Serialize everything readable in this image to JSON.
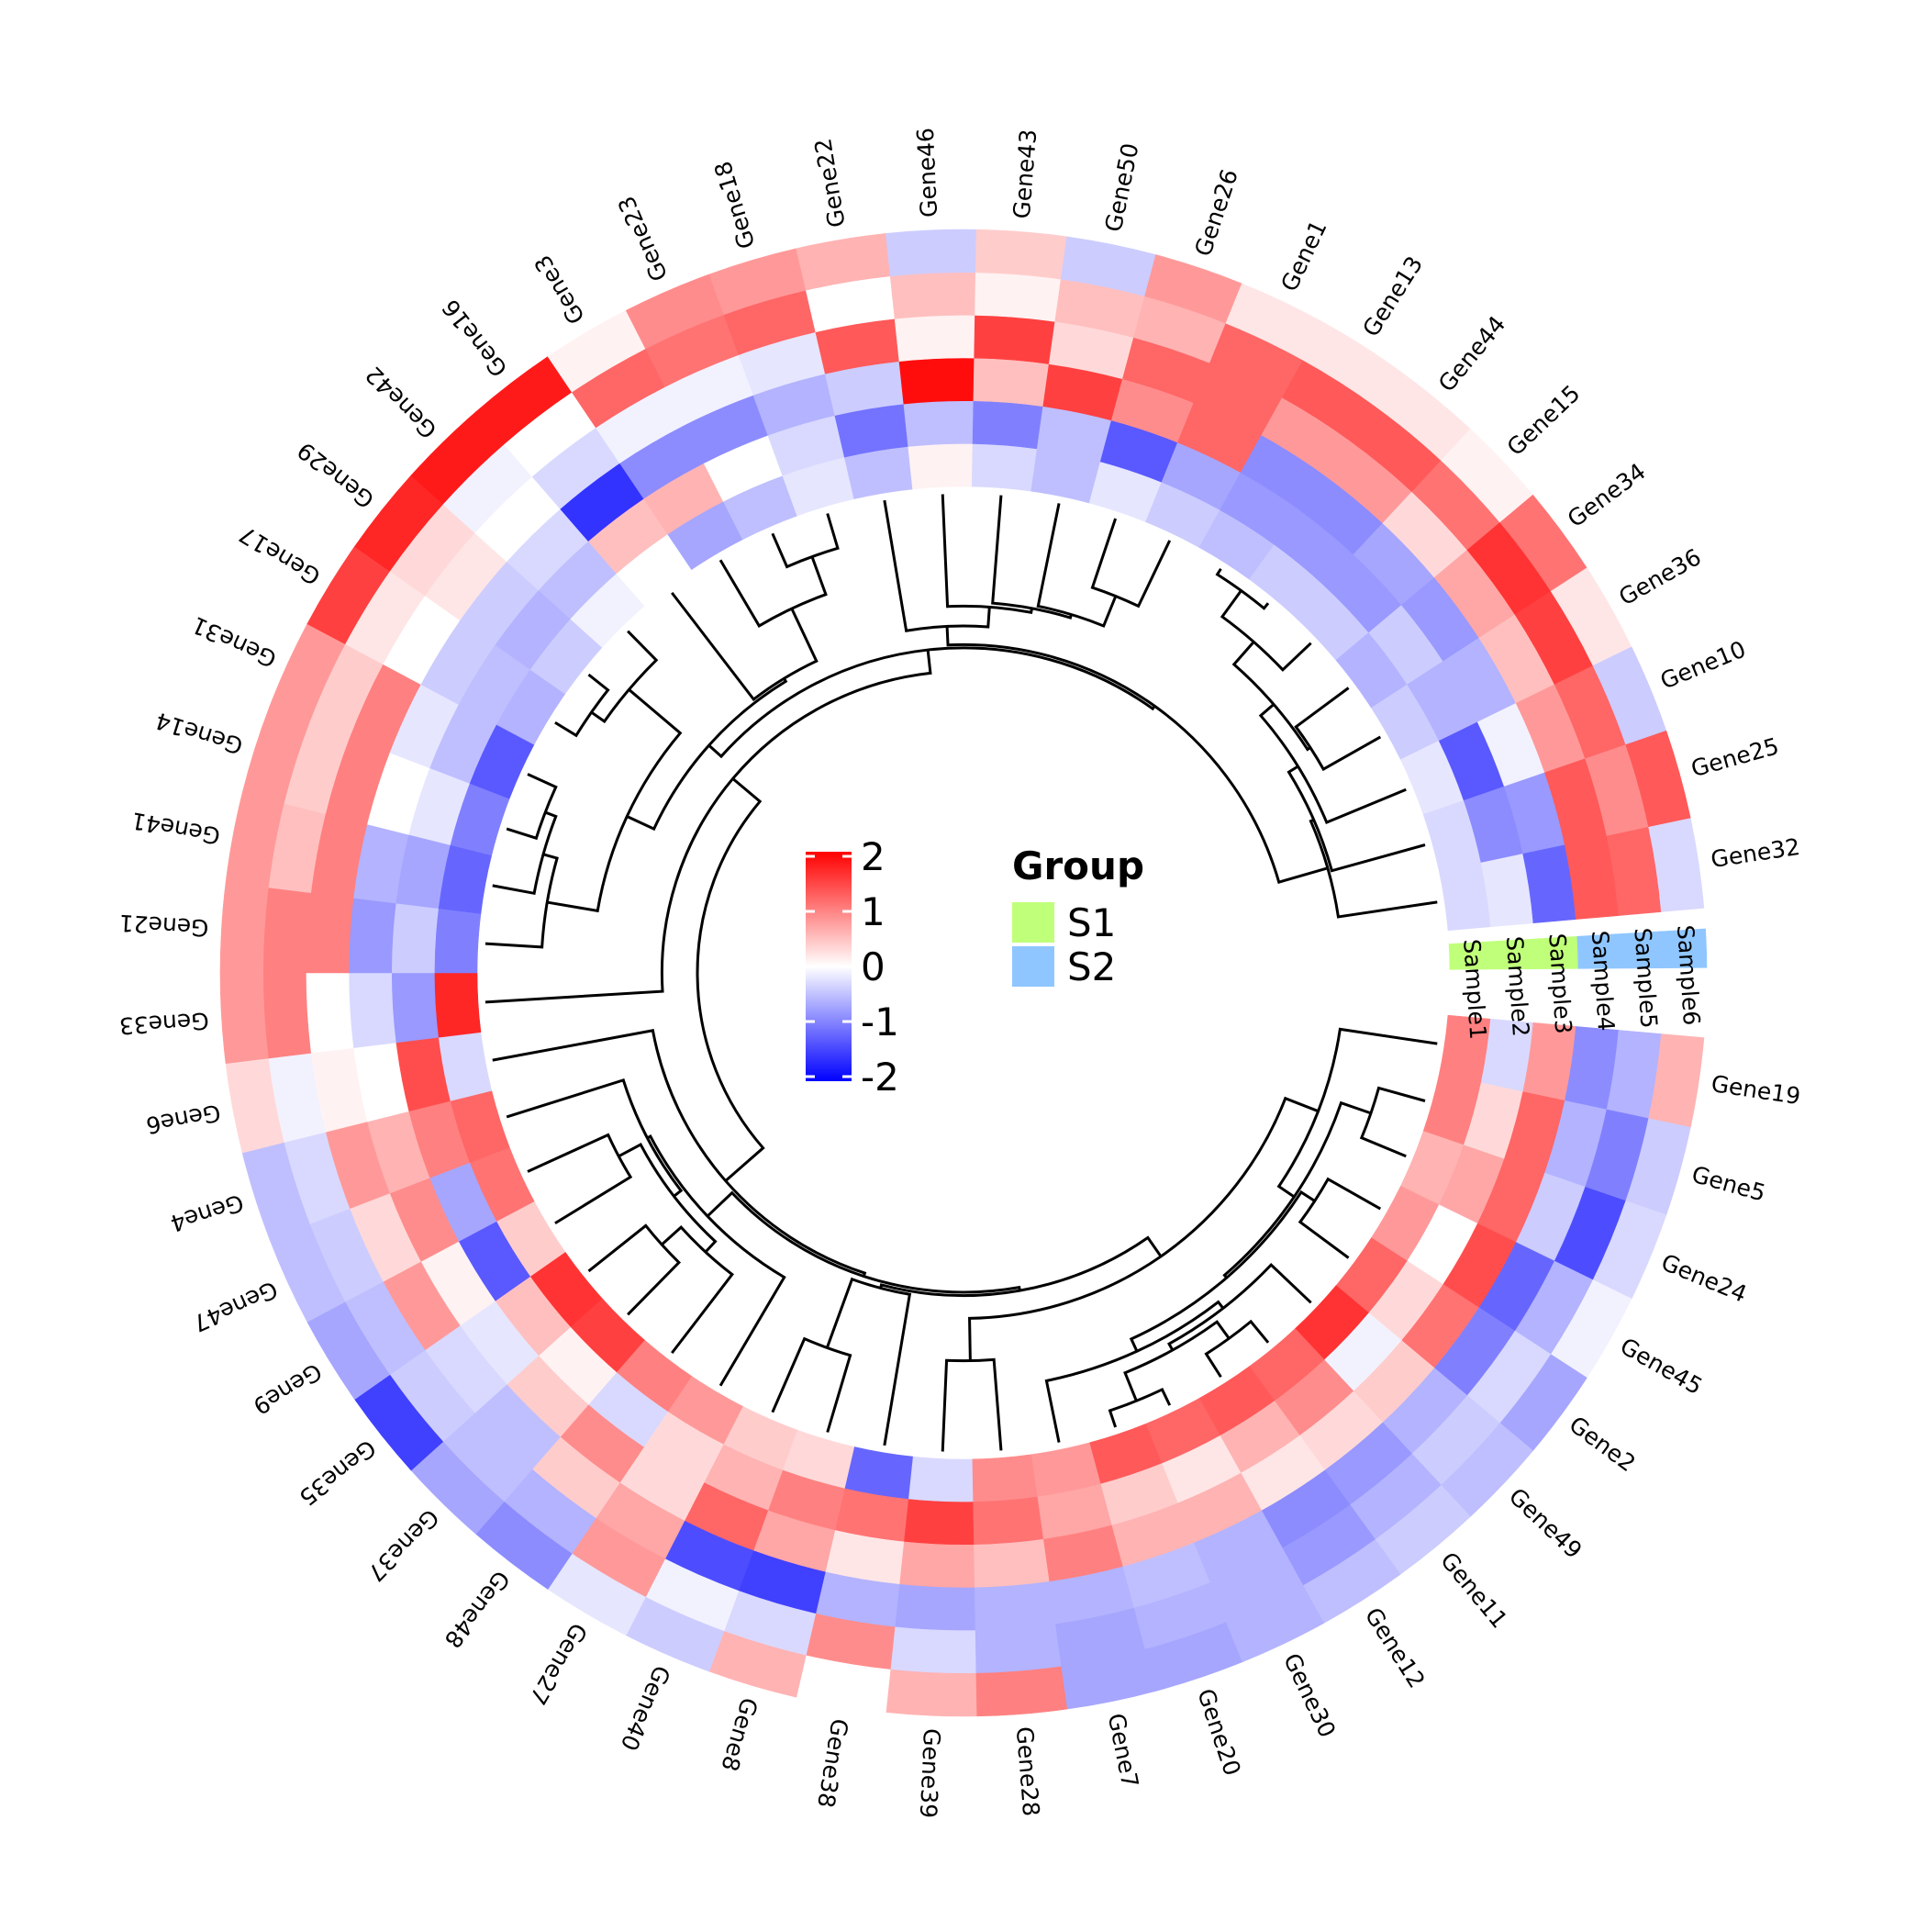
{
  "chart_data": {
    "type": "heatmap",
    "layout": "circular",
    "samples": [
      "Sample1",
      "Sample2",
      "Sample3",
      "Sample4",
      "Sample5",
      "Sample6"
    ],
    "sample_groups": [
      "S1",
      "S1",
      "S1",
      "S2",
      "S2",
      "S2"
    ],
    "genes": [
      "Gene19",
      "Gene5",
      "Gene24",
      "Gene45",
      "Gene2",
      "Gene49",
      "Gene11",
      "Gene12",
      "Gene30",
      "Gene20",
      "Gene7",
      "Gene28",
      "Gene39",
      "Gene38",
      "Gene8",
      "Gene40",
      "Gene27",
      "Gene48",
      "Gene37",
      "Gene35",
      "Gene9",
      "Gene47",
      "Gene4",
      "Gene6",
      "Gene33",
      "Gene21",
      "Gene41",
      "Gene14",
      "Gene31",
      "Gene17",
      "Gene29",
      "Gene42",
      "Gene16",
      "Gene3",
      "Gene23",
      "Gene18",
      "Gene22",
      "Gene46",
      "Gene43",
      "Gene50",
      "Gene26",
      "Gene1",
      "Gene13",
      "Gene44",
      "Gene15",
      "Gene34",
      "Gene36",
      "Gene10",
      "Gene25",
      "Gene32"
    ],
    "values": [
      [
        1.0,
        -0.3,
        0.8,
        -0.9,
        -0.6,
        0.6
      ],
      [
        1.0,
        0.3,
        1.2,
        -0.6,
        -1.0,
        -0.4
      ],
      [
        0.6,
        0.7,
        1.2,
        -0.4,
        -1.4,
        -0.3
      ],
      [
        0.8,
        0.0,
        1.4,
        -1.2,
        -0.6,
        -0.1
      ],
      [
        1.2,
        0.3,
        1.1,
        -1.0,
        -0.3,
        -0.7
      ],
      [
        1.6,
        -0.1,
        0.4,
        -0.6,
        -0.4,
        -0.5
      ],
      [
        1.2,
        0.9,
        0.3,
        -0.8,
        -0.6,
        -0.4
      ],
      [
        1.3,
        0.6,
        0.2,
        -0.9,
        -0.8,
        -0.5
      ],
      [
        1.2,
        0.2,
        0.6,
        -0.6,
        -0.6,
        -0.6
      ],
      [
        1.3,
        0.4,
        0.6,
        -0.5,
        -0.6,
        -0.7
      ],
      [
        0.8,
        0.7,
        1.0,
        -0.6,
        -0.7,
        -0.7
      ],
      [
        0.9,
        1.1,
        0.5,
        -0.6,
        -0.6,
        1.0
      ],
      [
        -0.3,
        1.5,
        0.7,
        -0.7,
        -0.3,
        0.6
      ],
      [
        -1.2,
        1.1,
        0.2,
        -0.6,
        0.9,
        0.0
      ],
      [
        0.3,
        1.0,
        0.7,
        -1.5,
        -0.3,
        0.6
      ],
      [
        0.4,
        0.6,
        1.2,
        -1.4,
        -0.1,
        -0.4
      ],
      [
        0.8,
        0.3,
        0.3,
        0.7,
        0.8,
        -0.2
      ],
      [
        1.0,
        -0.3,
        0.9,
        0.4,
        -0.6,
        -0.9
      ],
      [
        1.5,
        0.1,
        0.4,
        -0.5,
        -0.5,
        -0.7
      ],
      [
        1.6,
        0.5,
        -0.2,
        -0.3,
        -0.4,
        -1.5
      ],
      [
        0.4,
        -1.3,
        0.1,
        0.8,
        -0.5,
        -0.7
      ],
      [
        1.1,
        -0.7,
        0.9,
        0.3,
        -0.4,
        -0.5
      ],
      [
        1.2,
        1.0,
        0.6,
        0.8,
        -0.3,
        -0.5
      ],
      [
        -0.3,
        1.4,
        0.0,
        0.1,
        -0.1,
        0.3
      ],
      [
        1.7,
        -0.8,
        -0.3,
        0.0,
        1.0,
        0.8
      ],
      [
        -1.0,
        -0.4,
        -0.8,
        1.0,
        1.0,
        0.8
      ],
      [
        -1.2,
        -0.7,
        -0.6,
        1.0,
        0.5,
        0.8
      ],
      [
        -1.0,
        -0.2,
        0.0,
        1.0,
        0.4,
        0.8
      ],
      [
        -1.3,
        -0.5,
        -0.2,
        1.0,
        0.4,
        0.8
      ],
      [
        -0.6,
        -0.5,
        -0.4,
        0.0,
        0.2,
        1.5
      ],
      [
        -0.4,
        -0.6,
        -0.4,
        0.2,
        0.3,
        1.7
      ],
      [
        -0.1,
        -0.5,
        -0.3,
        0.0,
        -0.1,
        1.8
      ],
      [
        0.0,
        0.5,
        -1.6,
        -0.3,
        0.0,
        1.8
      ],
      [
        -0.7,
        0.6,
        -0.9,
        -0.1,
        1.2,
        0.1
      ],
      [
        -0.5,
        0.0,
        -0.9,
        -0.1,
        1.1,
        0.9
      ],
      [
        -0.2,
        -0.3,
        -0.6,
        -0.2,
        1.2,
        0.8
      ],
      [
        -0.5,
        -1.1,
        -0.4,
        1.3,
        0.0,
        0.6
      ],
      [
        0.1,
        -0.5,
        1.9,
        0.1,
        0.5,
        -0.4
      ],
      [
        -0.3,
        -1.0,
        0.5,
        1.5,
        0.1,
        0.4
      ],
      [
        -0.5,
        -0.5,
        1.5,
        0.3,
        0.5,
        -0.4
      ],
      [
        -0.2,
        -1.3,
        0.9,
        1.2,
        0.6,
        0.8
      ],
      [
        -0.4,
        -0.7,
        1.2,
        1.2,
        1.2,
        0.2
      ],
      [
        -0.5,
        -0.8,
        -0.9,
        0.8,
        1.3,
        0.2
      ],
      [
        -0.4,
        -0.8,
        -0.9,
        0.8,
        1.3,
        0.2
      ],
      [
        -0.4,
        -0.8,
        -0.7,
        0.3,
        1.1,
        0.1
      ],
      [
        -0.6,
        -0.4,
        -0.8,
        0.7,
        1.6,
        1.1
      ],
      [
        -0.4,
        -0.6,
        -0.6,
        0.5,
        1.5,
        0.2
      ],
      [
        -0.2,
        -1.3,
        -0.1,
        0.8,
        1.2,
        -0.4
      ],
      [
        -0.3,
        -0.9,
        -0.8,
        1.3,
        0.9,
        1.3
      ],
      [
        -0.3,
        -0.2,
        -1.2,
        1.3,
        1.2,
        -0.3
      ]
    ],
    "color_scale": {
      "min": -2,
      "mid": 0,
      "max": 2,
      "low_color": "#0000ff",
      "mid_color": "#ffffff",
      "high_color": "#ff0000"
    },
    "legend": {
      "ticks": [
        "2",
        "1",
        "0",
        "-1",
        "-2"
      ],
      "title": "Group",
      "groups": [
        {
          "label": "S1",
          "color": "#c0ff7a"
        },
        {
          "label": "S2",
          "color": "#8fc6ff"
        }
      ]
    }
  }
}
